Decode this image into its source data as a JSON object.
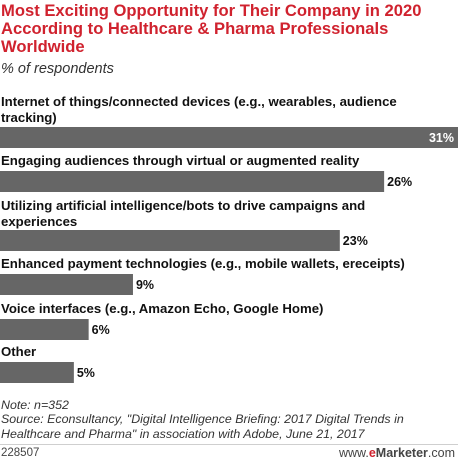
{
  "header": {
    "title": "Most Exciting Opportunity for Their Company in 2020 According to Healthcare & Pharma Professionals Worldwide",
    "subtitle": "% of respondents"
  },
  "chart_data": {
    "type": "bar",
    "orientation": "horizontal",
    "title": "Most Exciting Opportunity for Their Company in 2020 According to Healthcare & Pharma Professionals Worldwide",
    "subtitle": "% of respondents",
    "categories": [
      "Internet of things/connected devices (e.g., wearables, audience tracking)",
      "Engaging audiences through virtual or augmented reality",
      "Utilizing artificial intelligence/bots to drive campaigns and experiences",
      "Enhanced payment technologies (e.g., mobile wallets, ereceipts)",
      "Voice interfaces (e.g., Amazon Echo, Google Home)",
      "Other"
    ],
    "values": [
      31,
      26,
      23,
      9,
      6,
      5
    ],
    "value_labels": [
      "31%",
      "26%",
      "23%",
      "9%",
      "6%",
      "5%"
    ],
    "xlim": [
      0,
      31
    ],
    "bar_color": "#666666",
    "grid": false
  },
  "notes": {
    "note": "Note: n=352",
    "source": "Source: Econsultancy, \"Digital Intelligence Briefing: 2017 Digital Trends in Healthcare and Pharma\" in association with Adobe, June 21, 2017"
  },
  "footer": {
    "chart_id": "228507",
    "brand_prefix": "www.",
    "brand_accent": "e",
    "brand_name": "Marketer",
    "brand_suffix": ".com"
  },
  "colors": {
    "title": "#d0222e",
    "bar": "#666666",
    "label_inside": "#ffffff",
    "label_outside": "#111111"
  }
}
